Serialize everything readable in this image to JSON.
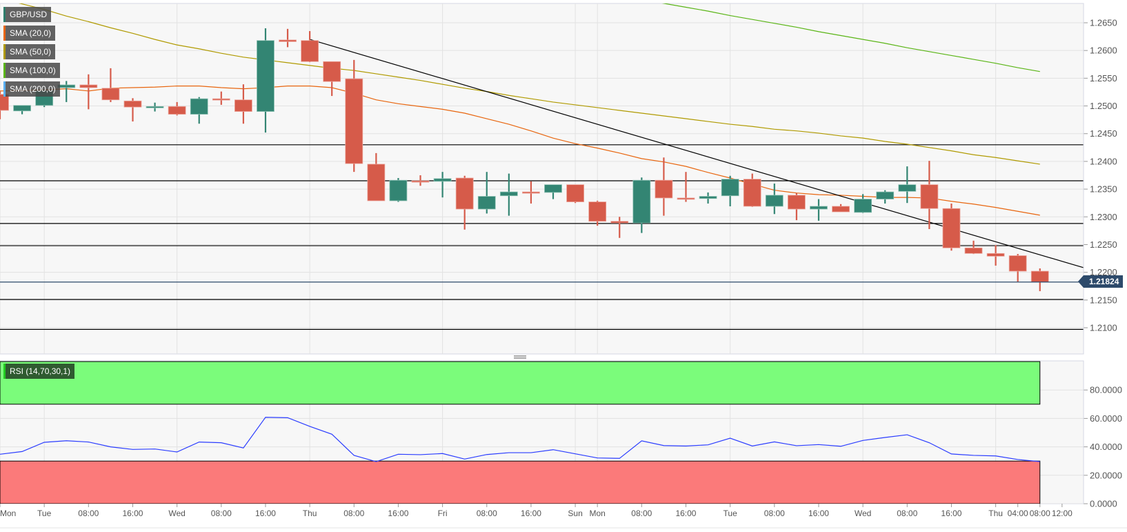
{
  "legend": [
    {
      "label": "GBP/USD",
      "color": "#2e7d6b"
    },
    {
      "label": "SMA (20,0)",
      "color": "#e8650e"
    },
    {
      "label": "SMA (50,0)",
      "color": "#b09a00"
    },
    {
      "label": "SMA (100,0)",
      "color": "#5ab516"
    },
    {
      "label": "SMA (200,0)",
      "color": "#5aaff0"
    }
  ],
  "rsi_legend": {
    "label": "RSI (14,70,30,1)",
    "color": "#22cc22"
  },
  "current_price": "1.21824",
  "chart_data": [
    {
      "type": "candlestick",
      "symbol": "GBP/USD",
      "interval": "4h",
      "colors": {
        "up": "#338573",
        "down": "#d65b4a",
        "sma20": "#e8650e",
        "sma50": "#b09a00",
        "sma100": "#5ab516",
        "trendline": "#000000",
        "levels": "#000000",
        "current": "#2d4a6b"
      },
      "y_range": [
        1.2053,
        1.2685
      ],
      "y_ticks": [
        "1.2650",
        "1.2600",
        "1.2550",
        "1.2500",
        "1.2450",
        "1.2400",
        "1.2350",
        "1.2300",
        "1.2250",
        "1.2200",
        "1.2150",
        "1.2100"
      ],
      "x_ticks": [
        {
          "label": "Mon",
          "index": 0
        },
        {
          "label": "Tue",
          "index": 2
        },
        {
          "label": "08:00",
          "index": 4
        },
        {
          "label": "16:00",
          "index": 6
        },
        {
          "label": "Wed",
          "index": 8
        },
        {
          "label": "08:00",
          "index": 10
        },
        {
          "label": "16:00",
          "index": 12
        },
        {
          "label": "Thu",
          "index": 14
        },
        {
          "label": "08:00",
          "index": 16
        },
        {
          "label": "16:00",
          "index": 18
        },
        {
          "label": "Fri",
          "index": 20
        },
        {
          "label": "08:00",
          "index": 22
        },
        {
          "label": "16:00",
          "index": 24
        },
        {
          "label": "Sun",
          "index": 26
        },
        {
          "label": "Mon",
          "index": 27
        },
        {
          "label": "08:00",
          "index": 29
        },
        {
          "label": "16:00",
          "index": 31
        },
        {
          "label": "Tue",
          "index": 33
        },
        {
          "label": "08:00",
          "index": 35
        },
        {
          "label": "16:00",
          "index": 37
        },
        {
          "label": "Wed",
          "index": 39
        },
        {
          "label": "08:00",
          "index": 41
        },
        {
          "label": "16:00",
          "index": 43
        },
        {
          "label": "Thu",
          "index": 45
        },
        {
          "label": "04:00",
          "index": 46
        },
        {
          "label": "08:00",
          "index": 47
        },
        {
          "label": "12:00",
          "index": 48
        }
      ],
      "ohlc_columns": [
        "open",
        "high",
        "low",
        "close"
      ],
      "candles": [
        [
          1.2521,
          1.2526,
          1.2476,
          1.2492
        ],
        [
          1.2491,
          1.2501,
          1.2485,
          1.2501
        ],
        [
          1.2501,
          1.2529,
          1.2498,
          1.2527
        ],
        [
          1.2533,
          1.2545,
          1.2507,
          1.2538
        ],
        [
          1.2538,
          1.2557,
          1.2494,
          1.2533
        ],
        [
          1.2532,
          1.2568,
          1.2507,
          1.2511
        ],
        [
          1.2509,
          1.2514,
          1.2472,
          1.2498
        ],
        [
          1.2497,
          1.2506,
          1.249,
          1.2499
        ],
        [
          1.2499,
          1.2507,
          1.2483,
          1.2485
        ],
        [
          1.2485,
          1.2516,
          1.2468,
          1.2513
        ],
        [
          1.2513,
          1.2526,
          1.2502,
          1.2512
        ],
        [
          1.2511,
          1.2539,
          1.2468,
          1.249
        ],
        [
          1.249,
          1.264,
          1.2452,
          1.2618
        ],
        [
          1.2619,
          1.2639,
          1.2606,
          1.2616
        ],
        [
          1.2618,
          1.2635,
          1.2579,
          1.258
        ],
        [
          1.258,
          1.258,
          1.2518,
          1.2544
        ],
        [
          1.2549,
          1.2583,
          1.2381,
          1.2396
        ],
        [
          1.2395,
          1.2415,
          1.2329,
          1.2329
        ],
        [
          1.2329,
          1.237,
          1.2327,
          1.2366
        ],
        [
          1.2365,
          1.2375,
          1.2356,
          1.2364
        ],
        [
          1.2364,
          1.2381,
          1.2335,
          1.2369
        ],
        [
          1.237,
          1.2374,
          1.2277,
          1.2314
        ],
        [
          1.2314,
          1.2381,
          1.2306,
          1.2337
        ],
        [
          1.2338,
          1.2378,
          1.2302,
          1.2345
        ],
        [
          1.2345,
          1.2364,
          1.2324,
          1.2344
        ],
        [
          1.2344,
          1.2358,
          1.2332,
          1.2358
        ],
        [
          1.2358,
          1.2358,
          1.2325,
          1.2327
        ],
        [
          1.2327,
          1.2329,
          1.2284,
          1.2292
        ],
        [
          1.2292,
          1.23,
          1.2262,
          1.2289
        ],
        [
          1.2289,
          1.2371,
          1.2271,
          1.2366
        ],
        [
          1.2366,
          1.2407,
          1.2302,
          1.2334
        ],
        [
          1.2334,
          1.2381,
          1.2327,
          1.2333
        ],
        [
          1.2333,
          1.2344,
          1.2324,
          1.2337
        ],
        [
          1.2338,
          1.2374,
          1.2319,
          1.2368
        ],
        [
          1.2368,
          1.2378,
          1.2318,
          1.2319
        ],
        [
          1.2319,
          1.236,
          1.2305,
          1.2339
        ],
        [
          1.2339,
          1.2343,
          1.2294,
          1.2314
        ],
        [
          1.2314,
          1.2332,
          1.2293,
          1.2319
        ],
        [
          1.2319,
          1.2323,
          1.2309,
          1.2309
        ],
        [
          1.2308,
          1.2341,
          1.2307,
          1.2332
        ],
        [
          1.2332,
          1.2348,
          1.2324,
          1.2345
        ],
        [
          1.2346,
          1.2391,
          1.2325,
          1.2358
        ],
        [
          1.2358,
          1.2401,
          1.2278,
          1.2315
        ],
        [
          1.2315,
          1.2324,
          1.2239,
          1.2244
        ],
        [
          1.2244,
          1.2257,
          1.2233,
          1.2234
        ],
        [
          1.2234,
          1.2249,
          1.2212,
          1.2229
        ],
        [
          1.223,
          1.2233,
          1.2183,
          1.2202
        ],
        [
          1.2202,
          1.2207,
          1.2166,
          1.21824
        ]
      ],
      "sma20": [
        1.2527,
        1.2528,
        1.2529,
        1.2531,
        1.2527,
        1.2532,
        1.2533,
        1.2534,
        1.2536,
        1.2536,
        1.2533,
        1.2531,
        1.2533,
        1.2536,
        1.2536,
        1.2533,
        1.2523,
        1.2511,
        1.2504,
        1.2499,
        1.2494,
        1.2487,
        1.2477,
        1.2467,
        1.2455,
        1.2442,
        1.2432,
        1.2424,
        1.2415,
        1.2405,
        1.2399,
        1.2391,
        1.238,
        1.237,
        1.2359,
        1.2348,
        1.2343,
        1.234,
        1.2339,
        1.2337,
        1.2335,
        1.2335,
        1.2334,
        1.2328,
        1.2323,
        1.2317,
        1.231,
        1.2303
      ],
      "sma50": [
        1.2694,
        1.2684,
        1.2674,
        1.2662,
        1.2652,
        1.2641,
        1.2631,
        1.262,
        1.261,
        1.2603,
        1.2595,
        1.2588,
        1.2583,
        1.2578,
        1.2573,
        1.2568,
        1.2564,
        1.2558,
        1.2552,
        1.2546,
        1.2539,
        1.2532,
        1.2526,
        1.2519,
        1.2513,
        1.2507,
        1.2502,
        1.2497,
        1.2492,
        1.2487,
        1.2482,
        1.2477,
        1.2472,
        1.2467,
        1.2463,
        1.2458,
        1.2455,
        1.2451,
        1.2446,
        1.2442,
        1.2436,
        1.2431,
        1.2425,
        1.2419,
        1.2412,
        1.2407,
        1.2401,
        1.2395
      ],
      "sma100": {
        "start_index": 29,
        "values": [
          1.2692,
          1.2685,
          1.2678,
          1.2671,
          1.2663,
          1.2656,
          1.2649,
          1.2642,
          1.2634,
          1.2627,
          1.262,
          1.2613,
          1.2605,
          1.2598,
          1.2591,
          1.2584,
          1.2577,
          1.2569,
          1.2562
        ]
      },
      "trendline": {
        "from": {
          "index": 14,
          "price": 1.262
        },
        "to": {
          "index": 49,
          "price": 1.2208
        }
      },
      "horizontal_levels": [
        1.243,
        1.2365,
        1.2288,
        1.2248,
        1.2151,
        1.2097
      ],
      "current_price": 1.21824
    },
    {
      "type": "line",
      "indicator": "RSI",
      "y_range": [
        0,
        100
      ],
      "y_ticks": [
        "80.0000",
        "60.0000",
        "40.0000",
        "20.0000",
        "0.0000"
      ],
      "overbought": 70,
      "oversold": 30,
      "band_colors": {
        "overbought": "#7bfc7b",
        "oversold": "#fb7a7a",
        "line": "#2a3cff"
      },
      "values": [
        34.8,
        36.7,
        43.2,
        44.3,
        43.4,
        40.0,
        38.2,
        38.5,
        36.4,
        43.4,
        42.9,
        39.2,
        60.8,
        60.5,
        54.4,
        48.9,
        34.0,
        29.6,
        34.8,
        34.5,
        35.3,
        31.4,
        34.6,
        35.9,
        35.9,
        38.0,
        35.1,
        32.2,
        31.9,
        44.2,
        40.9,
        40.6,
        41.4,
        46.1,
        40.6,
        43.5,
        40.8,
        41.6,
        40.4,
        44.5,
        46.6,
        48.5,
        42.9,
        35.0,
        34.0,
        33.6,
        31.1,
        29.6
      ]
    }
  ]
}
